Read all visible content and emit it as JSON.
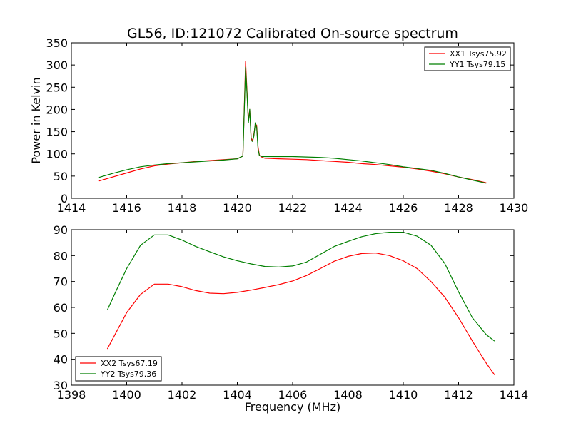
{
  "figure": {
    "title": "GL56, ID:121072 Calibrated On-source spectrum",
    "colors": {
      "red": "#ff0000",
      "green": "#007f00",
      "axes": "#000000",
      "background": "#ffffff"
    }
  },
  "chart_data": [
    {
      "type": "line",
      "title": "GL56, ID:121072 Calibrated On-source spectrum",
      "xlabel": "",
      "ylabel": "Power in Kelvin",
      "xlim": [
        1414,
        1430
      ],
      "ylim": [
        0,
        350
      ],
      "xticks": [
        1414,
        1416,
        1418,
        1420,
        1422,
        1424,
        1426,
        1428,
        1430
      ],
      "yticks": [
        0,
        50,
        100,
        150,
        200,
        250,
        300,
        350
      ],
      "legend_position": "top-right",
      "grid": false,
      "series": [
        {
          "name": "XX1 Tsys75.92",
          "color": "#ff0000",
          "x": [
            1415.0,
            1415.5,
            1416.0,
            1416.5,
            1417.0,
            1417.5,
            1418.0,
            1418.5,
            1419.0,
            1419.5,
            1420.0,
            1420.2,
            1420.25,
            1420.3,
            1420.35,
            1420.4,
            1420.45,
            1420.5,
            1420.55,
            1420.6,
            1420.65,
            1420.7,
            1420.75,
            1420.8,
            1420.9,
            1421.0,
            1421.5,
            1422.0,
            1422.5,
            1423.0,
            1423.5,
            1424.0,
            1424.5,
            1425.0,
            1425.5,
            1426.0,
            1426.5,
            1427.0,
            1427.5,
            1428.0,
            1428.5,
            1429.0
          ],
          "y": [
            39,
            48,
            57,
            66,
            73,
            77,
            80,
            83,
            85,
            87,
            89,
            95,
            200,
            308,
            240,
            175,
            200,
            135,
            130,
            145,
            165,
            165,
            115,
            97,
            92,
            90,
            89,
            88,
            87,
            85,
            83,
            81,
            78,
            76,
            73,
            70,
            66,
            61,
            55,
            48,
            42,
            35
          ]
        },
        {
          "name": "YY1 Tsys79.15",
          "color": "#007f00",
          "x": [
            1415.0,
            1415.5,
            1416.0,
            1416.5,
            1417.0,
            1417.5,
            1418.0,
            1418.5,
            1419.0,
            1419.5,
            1420.0,
            1420.2,
            1420.25,
            1420.3,
            1420.35,
            1420.4,
            1420.45,
            1420.5,
            1420.55,
            1420.6,
            1420.65,
            1420.7,
            1420.75,
            1420.8,
            1420.9,
            1421.0,
            1421.5,
            1422.0,
            1422.5,
            1423.0,
            1423.5,
            1424.0,
            1424.5,
            1425.0,
            1425.5,
            1426.0,
            1426.5,
            1427.0,
            1427.5,
            1428.0,
            1428.5,
            1429.0
          ],
          "y": [
            47,
            56,
            64,
            71,
            75,
            78,
            80,
            82,
            84,
            86,
            89,
            95,
            195,
            295,
            235,
            170,
            200,
            130,
            128,
            140,
            170,
            160,
            110,
            96,
            94,
            94,
            94,
            94,
            93,
            92,
            90,
            87,
            84,
            80,
            76,
            71,
            67,
            63,
            56,
            48,
            41,
            34
          ]
        }
      ]
    },
    {
      "type": "line",
      "title": "",
      "xlabel": "Frequency (MHz)",
      "ylabel": "",
      "xlim": [
        1398,
        1414
      ],
      "ylim": [
        30,
        90
      ],
      "xticks": [
        1398,
        1400,
        1402,
        1404,
        1406,
        1408,
        1410,
        1412,
        1414
      ],
      "yticks": [
        30,
        40,
        50,
        60,
        70,
        80,
        90
      ],
      "legend_position": "bottom-left",
      "grid": false,
      "series": [
        {
          "name": "XX2 Tsys67.19",
          "color": "#ff0000",
          "x": [
            1399.3,
            1399.6,
            1400.0,
            1400.5,
            1401.0,
            1401.5,
            1402.0,
            1402.5,
            1403.0,
            1403.5,
            1404.0,
            1404.5,
            1405.0,
            1405.5,
            1406.0,
            1406.5,
            1407.0,
            1407.5,
            1408.0,
            1408.5,
            1409.0,
            1409.5,
            1410.0,
            1410.5,
            1411.0,
            1411.5,
            1412.0,
            1412.5,
            1413.0,
            1413.3
          ],
          "y": [
            44,
            50,
            58,
            65,
            69,
            69,
            68,
            66.5,
            65.5,
            65.3,
            65.8,
            66.7,
            67.7,
            68.8,
            70.2,
            72.3,
            75,
            77.8,
            79.7,
            80.8,
            81,
            80,
            78,
            75,
            70,
            64,
            56,
            47,
            38.5,
            34
          ]
        },
        {
          "name": "YY2 Tsys79.36",
          "color": "#007f00",
          "x": [
            1399.3,
            1399.6,
            1400.0,
            1400.5,
            1401.0,
            1401.5,
            1402.0,
            1402.5,
            1403.0,
            1403.5,
            1404.0,
            1404.5,
            1405.0,
            1405.5,
            1406.0,
            1406.5,
            1407.0,
            1407.5,
            1408.0,
            1408.5,
            1409.0,
            1409.5,
            1410.0,
            1410.5,
            1411.0,
            1411.5,
            1412.0,
            1412.5,
            1413.0,
            1413.3
          ],
          "y": [
            59,
            66,
            75,
            84,
            88,
            88,
            86,
            83.5,
            81.5,
            79.5,
            78,
            76.8,
            75.8,
            75.6,
            76,
            77.5,
            80.5,
            83.5,
            85.5,
            87.3,
            88.5,
            89,
            89,
            87.5,
            84,
            77,
            66,
            56,
            49.5,
            47
          ]
        }
      ]
    }
  ]
}
